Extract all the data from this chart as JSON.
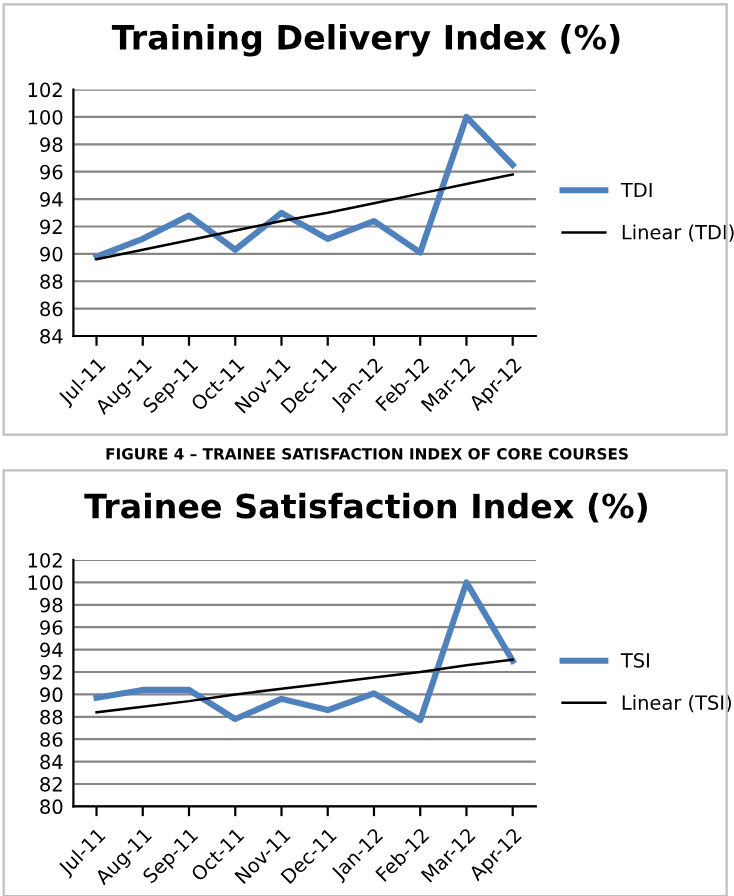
{
  "chart_data": [
    {
      "type": "line",
      "title": "Training Delivery Index (%)",
      "categories": [
        "Jul-11",
        "Aug-11",
        "Sep-11",
        "Oct-11",
        "Nov-11",
        "Dec-11",
        "Jan-12",
        "Feb-12",
        "Mar-12",
        "Apr-12"
      ],
      "series": [
        {
          "name": "TDI",
          "color": "#4f81bd",
          "values": [
            89.8,
            91.1,
            92.8,
            90.3,
            93.0,
            91.1,
            92.4,
            90.1,
            100.0,
            96.5
          ]
        },
        {
          "name": "Linear (TDI)",
          "color": "#000000",
          "values": [
            89.6,
            90.3,
            91.0,
            91.7,
            92.4,
            93.0,
            93.7,
            94.4,
            95.1,
            95.8
          ]
        }
      ],
      "ylim": [
        84,
        102
      ],
      "yticks": [
        84,
        86,
        88,
        90,
        92,
        94,
        96,
        98,
        100,
        102
      ],
      "grid": "y",
      "legend": "right"
    },
    {
      "type": "line",
      "title": "Trainee Satisfaction Index (%)",
      "annotations": [
        "FIGURE 4 – TRAINEE SATISFACTION INDEX OF CORE COURSES"
      ],
      "categories": [
        "Jul-11",
        "Aug-11",
        "Sep-11",
        "Oct-11",
        "Nov-11",
        "Dec-11",
        "Jan-12",
        "Feb-12",
        "Mar-12",
        "Apr-12"
      ],
      "series": [
        {
          "name": "TSI",
          "color": "#4f81bd",
          "values": [
            89.7,
            90.4,
            90.4,
            87.8,
            89.6,
            88.6,
            90.1,
            87.7,
            100.0,
            93.0
          ]
        },
        {
          "name": "Linear (TSI)",
          "color": "#000000",
          "values": [
            88.4,
            88.9,
            89.4,
            90.0,
            90.5,
            91.0,
            91.5,
            92.0,
            92.6,
            93.1
          ]
        }
      ],
      "ylim": [
        80,
        102
      ],
      "yticks": [
        80,
        82,
        84,
        86,
        88,
        90,
        92,
        94,
        96,
        98,
        100,
        102
      ],
      "grid": "y",
      "legend": "right"
    }
  ]
}
